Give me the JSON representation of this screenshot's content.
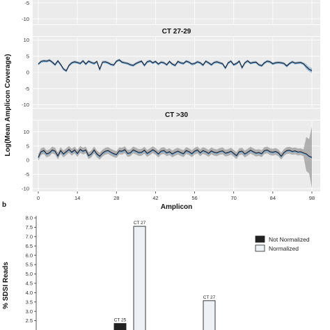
{
  "figure_a": {
    "y_axis_title": "Log(Mean Amplicon Coverage)",
    "x_axis_title": "Amplicon",
    "x_ticks": [
      "0",
      "14",
      "28",
      "42",
      "56",
      "70",
      "84",
      "98"
    ],
    "y_ticks": [
      "-10",
      "-5",
      "0",
      "5",
      "10"
    ],
    "colors": {
      "line": "#1d1d2b",
      "band": "#7fa6c4",
      "band_wide": "#9e9e9e",
      "strip": "#ebebeb",
      "panel": "#ebebeb",
      "grid": "#ffffff"
    }
  },
  "figure_b": {
    "panel_letter": "b",
    "y_axis_title": "% SDSI Reads",
    "y_ticks": [
      "2.5",
      "3.0",
      "3.5",
      "4.0",
      "4.5",
      "5.0",
      "5.5",
      "6.0",
      "6.5",
      "7.0",
      "7.5",
      "8.0"
    ],
    "legend": [
      "Not Normalized",
      "Normalized"
    ],
    "colors": {
      "not_normalized": "#222222",
      "normalized": "#eef2f6"
    }
  },
  "chart_data": [
    {
      "type": "line",
      "panel": "top (clipped)",
      "title": "",
      "x": [],
      "xlim": [
        -2,
        101
      ],
      "ylim": [
        -11,
        11
      ],
      "y_ticks_visible": [
        -5,
        -10
      ],
      "series": []
    },
    {
      "type": "line",
      "title": "CT 27-29",
      "xlim": [
        -2,
        101
      ],
      "ylim": [
        -11,
        11
      ],
      "x": [
        0,
        1,
        2,
        3,
        4,
        5,
        6,
        7,
        8,
        9,
        10,
        11,
        12,
        13,
        14,
        15,
        16,
        17,
        18,
        19,
        20,
        21,
        22,
        23,
        24,
        25,
        26,
        27,
        28,
        29,
        30,
        31,
        32,
        33,
        34,
        35,
        36,
        37,
        38,
        39,
        40,
        41,
        42,
        43,
        44,
        45,
        46,
        47,
        48,
        49,
        50,
        51,
        52,
        53,
        54,
        55,
        56,
        57,
        58,
        59,
        60,
        61,
        62,
        63,
        64,
        65,
        66,
        67,
        68,
        69,
        70,
        71,
        72,
        73,
        74,
        75,
        76,
        77,
        78,
        79,
        80,
        81,
        82,
        83,
        84,
        85,
        86,
        87,
        88,
        89,
        90,
        91,
        92,
        93,
        94,
        95,
        96,
        97,
        98
      ],
      "series": [
        {
          "values": [
            2.6,
            3.4,
            3.6,
            3.5,
            3.8,
            3.2,
            2.4,
            3.6,
            2.5,
            1.1,
            0.5,
            2.2,
            3.0,
            3.3,
            3.1,
            2.8,
            3.6,
            2.6,
            3.5,
            3.1,
            2.8,
            3.4,
            1.0,
            3.2,
            3.3,
            3.0,
            2.5,
            2.3,
            3.5,
            3.9,
            3.2,
            3.0,
            2.8,
            2.4,
            2.2,
            2.8,
            3.2,
            3.5,
            2.2,
            3.3,
            3.6,
            3.0,
            3.4,
            2.6,
            3.2,
            3.0,
            2.4,
            3.4,
            2.6,
            2.2,
            3.4,
            3.0,
            2.8,
            3.5,
            3.2,
            2.6,
            2.8,
            3.3,
            3.0,
            2.3,
            3.5,
            3.0,
            2.4,
            3.1,
            3.3,
            3.0,
            2.7,
            1.4,
            3.0,
            3.5,
            2.4,
            2.8,
            3.5,
            1.5,
            3.0,
            3.6,
            2.9,
            3.1,
            3.2,
            2.4,
            2.1,
            3.0,
            3.5,
            3.3,
            2.7,
            3.0,
            3.1,
            3.0,
            2.8,
            2.0,
            2.8,
            3.3,
            2.9,
            3.0,
            3.1,
            2.7,
            1.8,
            1.0,
            0.6
          ],
          "band": 0.4
        }
      ]
    },
    {
      "type": "line",
      "title": "CT >30",
      "xlim": [
        -2,
        101
      ],
      "ylim": [
        -11,
        14
      ],
      "x": [
        0,
        1,
        2,
        3,
        4,
        5,
        6,
        7,
        8,
        9,
        10,
        11,
        12,
        13,
        14,
        15,
        16,
        17,
        18,
        19,
        20,
        21,
        22,
        23,
        24,
        25,
        26,
        27,
        28,
        29,
        30,
        31,
        32,
        33,
        34,
        35,
        36,
        37,
        38,
        39,
        40,
        41,
        42,
        43,
        44,
        45,
        46,
        47,
        48,
        49,
        50,
        51,
        52,
        53,
        54,
        55,
        56,
        57,
        58,
        59,
        60,
        61,
        62,
        63,
        64,
        65,
        66,
        67,
        68,
        69,
        70,
        71,
        72,
        73,
        74,
        75,
        76,
        77,
        78,
        79,
        80,
        81,
        82,
        83,
        84,
        85,
        86,
        87,
        88,
        89,
        90,
        91,
        92,
        93,
        94,
        95,
        96,
        97,
        98
      ],
      "series": [
        {
          "values": [
            1.0,
            3.0,
            3.4,
            2.2,
            2.6,
            3.6,
            3.2,
            1.5,
            3.4,
            2.2,
            3.0,
            3.8,
            2.8,
            3.6,
            2.4,
            3.8,
            3.2,
            3.6,
            1.6,
            2.2,
            3.6,
            2.2,
            1.4,
            2.5,
            3.2,
            3.4,
            2.8,
            2.3,
            2.0,
            3.3,
            3.2,
            3.7,
            2.4,
            2.6,
            3.6,
            3.2,
            2.7,
            2.8,
            3.5,
            2.4,
            3.0,
            3.7,
            3.1,
            2.2,
            3.2,
            3.4,
            2.6,
            3.0,
            2.2,
            2.8,
            3.2,
            2.7,
            2.3,
            3.4,
            3.0,
            2.3,
            3.2,
            3.6,
            2.6,
            3.4,
            3.0,
            2.4,
            3.3,
            2.8,
            2.6,
            3.1,
            3.3,
            2.5,
            2.7,
            3.2,
            2.4,
            1.6,
            3.0,
            3.2,
            2.2,
            2.8,
            3.5,
            3.0,
            2.5,
            2.7,
            2.3,
            3.4,
            3.6,
            3.0,
            2.8,
            3.1,
            2.6,
            1.4,
            2.7,
            3.4,
            3.5,
            3.1,
            3.3,
            2.9,
            3.0,
            2.6,
            2.2,
            1.4,
            1.0
          ],
          "band": 1.2
        }
      ]
    },
    {
      "type": "bar",
      "panel": "b",
      "ylabel": "% SDSI Reads",
      "ylim": [
        2.0,
        8.0
      ],
      "y_ticks": [
        2.5,
        3.0,
        3.5,
        4.0,
        4.5,
        5.0,
        5.5,
        6.0,
        6.5,
        7.0,
        7.5,
        8.0
      ],
      "legend": "top-right",
      "series": [
        {
          "name": "Not Normalized",
          "bars": [
            {
              "label": "CT 25",
              "value": 2.35
            }
          ]
        },
        {
          "name": "Normalized",
          "bars": [
            {
              "label": "CT 27",
              "value": 7.55
            },
            {
              "label": "CT 27",
              "value": 3.57
            }
          ]
        }
      ]
    }
  ]
}
